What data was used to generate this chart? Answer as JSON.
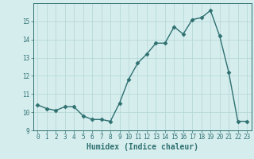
{
  "x": [
    0,
    1,
    2,
    3,
    4,
    5,
    6,
    7,
    8,
    9,
    10,
    11,
    12,
    13,
    14,
    15,
    16,
    17,
    18,
    19,
    20,
    21,
    22,
    23
  ],
  "y": [
    10.4,
    10.2,
    10.1,
    10.3,
    10.3,
    9.8,
    9.6,
    9.6,
    9.5,
    10.5,
    11.8,
    12.7,
    13.2,
    13.8,
    13.8,
    14.7,
    14.3,
    15.1,
    15.2,
    15.6,
    14.2,
    12.2,
    9.5,
    9.5
  ],
  "line_color": "#2e7070",
  "marker": "D",
  "marker_size": 2.5,
  "bg_color": "#d6edee",
  "grid_color": "#b8d8d8",
  "xlabel": "Humidex (Indice chaleur)",
  "ylim": [
    9,
    16
  ],
  "xlim": [
    -0.5,
    23.5
  ],
  "yticks": [
    9,
    10,
    11,
    12,
    13,
    14,
    15
  ],
  "xticks": [
    0,
    1,
    2,
    3,
    4,
    5,
    6,
    7,
    8,
    9,
    10,
    11,
    12,
    13,
    14,
    15,
    16,
    17,
    18,
    19,
    20,
    21,
    22,
    23
  ],
  "tick_color": "#2e7070",
  "label_fontsize": 7,
  "tick_fontsize": 5.5,
  "line_width": 1.0
}
